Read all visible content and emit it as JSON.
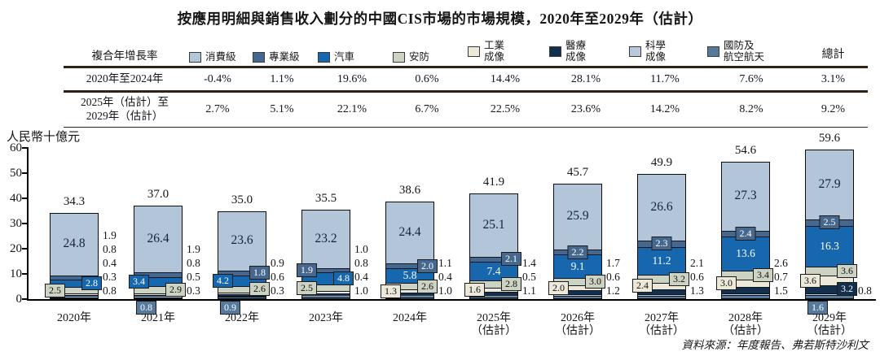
{
  "title": "按應用明細與銷售收入劃分的中國CIS市場的市場規模，2020年至2029年（估計）",
  "source_note": "資料來源：年度報告、弗若斯特沙利文",
  "table": {
    "header_label": "複合年增長率",
    "total_label": "總計",
    "rows": [
      {
        "label_lines": [
          "2020年至2024年"
        ],
        "values": [
          "-0.4%",
          "1.1%",
          "19.6%",
          "0.6%",
          "14.4%",
          "28.1%",
          "11.7%",
          "7.6%"
        ],
        "total": "3.1%"
      },
      {
        "label_lines": [
          "2025年（估計）至",
          "2029年（估計）"
        ],
        "values": [
          "2.7%",
          "5.1%",
          "22.1%",
          "6.7%",
          "22.5%",
          "23.6%",
          "14.2%",
          "8.2%"
        ],
        "total": "9.2%"
      }
    ]
  },
  "chart_data": {
    "type": "bar",
    "stacked": true,
    "title": "按應用明細與銷售收入劃分的中國CIS市場的市場規模，2020年至2029年（估計）",
    "ylabel": "人民幣十億元",
    "ylim": [
      0,
      60
    ],
    "yticks": [
      0,
      10,
      20,
      30,
      40,
      50,
      60
    ],
    "grid": false,
    "legend_position": "top-table-row",
    "x_labels": [
      [
        "2020年"
      ],
      [
        "2021年"
      ],
      [
        "2022年"
      ],
      [
        "2023年"
      ],
      [
        "2024年"
      ],
      [
        "2025年",
        "（估計）"
      ],
      [
        "2026年",
        "（估計）"
      ],
      [
        "2027年",
        "（估計）"
      ],
      [
        "2028年",
        "（估計）"
      ],
      [
        "2029年",
        "（估計）"
      ]
    ],
    "totals": [
      34.3,
      37.0,
      35.0,
      35.5,
      38.6,
      41.9,
      45.7,
      49.9,
      54.6,
      59.6
    ],
    "stack_note": "series listed top-to-bottom of stack; last entry is bottom segment",
    "series": [
      {
        "name": "消費級",
        "slug": "consumer",
        "label_lines": [
          "消費級"
        ],
        "color": "#b3c5d8",
        "text": "#14233a",
        "values": [
          24.8,
          26.4,
          23.6,
          23.2,
          24.4,
          25.1,
          25.9,
          26.6,
          27.3,
          27.9
        ],
        "label_modes": [
          "inside",
          "inside",
          "inside",
          "inside",
          "inside",
          "inside",
          "inside",
          "inside",
          "inside",
          "inside"
        ]
      },
      {
        "name": "專業級",
        "slug": "professional",
        "label_lines": [
          "專業級"
        ],
        "color": "#47688e",
        "text": "#ffffff",
        "values": [
          1.9,
          1.9,
          1.8,
          1.9,
          2.0,
          2.1,
          2.2,
          2.3,
          2.4,
          2.5
        ],
        "label_modes": [
          "side",
          "side",
          "box-right",
          "box-left",
          "box-right",
          "box-right",
          "box-center",
          "box-center",
          "box-center",
          "box-center"
        ]
      },
      {
        "name": "汽車",
        "slug": "automotive",
        "label_lines": [
          "汽車"
        ],
        "color": "#1767ae",
        "text": "#ffffff",
        "values": [
          2.8,
          3.4,
          4.2,
          4.8,
          5.8,
          7.4,
          9.1,
          11.2,
          13.6,
          16.3
        ],
        "label_modes": [
          "box-right",
          "box-left",
          "box-left",
          "box-right",
          "inside",
          "inside",
          "inside",
          "inside",
          "inside",
          "inside"
        ]
      },
      {
        "name": "安防",
        "slug": "security",
        "label_lines": [
          "安防"
        ],
        "color": "#ccd3c3",
        "text": "#111111",
        "values": [
          2.5,
          2.9,
          2.6,
          2.5,
          2.6,
          2.8,
          3.0,
          3.2,
          3.4,
          3.6
        ],
        "label_modes": [
          "box-left",
          "box-right",
          "box-right",
          "box-left",
          "box-right",
          "box-right",
          "box-right",
          "box-right",
          "box-right",
          "box-right"
        ]
      },
      {
        "name": "工業成像",
        "slug": "industrial-imaging",
        "label_lines": [
          "工業",
          "成像"
        ],
        "color": "#ede9da",
        "text": "#111111",
        "values": [
          0.8,
          0.8,
          0.9,
          1.0,
          1.3,
          1.6,
          2.0,
          2.4,
          3.0,
          3.6
        ],
        "label_modes": [
          "side",
          "side",
          "side",
          "side",
          "box-left",
          "box-left",
          "box-left",
          "box-left",
          "box-left",
          "box-left"
        ]
      },
      {
        "name": "醫療成像",
        "slug": "medical-imaging",
        "label_lines": [
          "醫療",
          "成像"
        ],
        "color": "#132f4e",
        "text": "#ffffff",
        "values": [
          0.4,
          0.5,
          0.6,
          0.8,
          1.1,
          1.4,
          1.7,
          2.1,
          2.6,
          3.2
        ],
        "label_modes": [
          "side",
          "side",
          "side",
          "side",
          "side",
          "side",
          "side",
          "side",
          "side",
          "box-right"
        ]
      },
      {
        "name": "科學成像",
        "slug": "scientific-imaging",
        "label_lines": [
          "科學",
          "成像"
        ],
        "color": "#b7c9da",
        "text": "#111111",
        "values": [
          0.3,
          0.3,
          0.3,
          0.4,
          0.4,
          0.5,
          0.6,
          0.6,
          0.7,
          0.8
        ],
        "label_modes": [
          "side",
          "side",
          "side",
          "side",
          "side",
          "side",
          "side",
          "side",
          "side",
          "side"
        ]
      },
      {
        "name": "國防及航空航天",
        "slug": "defense-aerospace",
        "label_lines": [
          "國防及",
          "航空航天"
        ],
        "color": "#567a9c",
        "text": "#ffffff",
        "values": [
          0.8,
          0.8,
          0.9,
          1.0,
          1.0,
          1.1,
          1.2,
          1.3,
          1.5,
          1.6
        ],
        "label_modes": [
          "side",
          "below",
          "below",
          "side",
          "side",
          "side",
          "side",
          "side",
          "side",
          "below"
        ]
      }
    ]
  }
}
